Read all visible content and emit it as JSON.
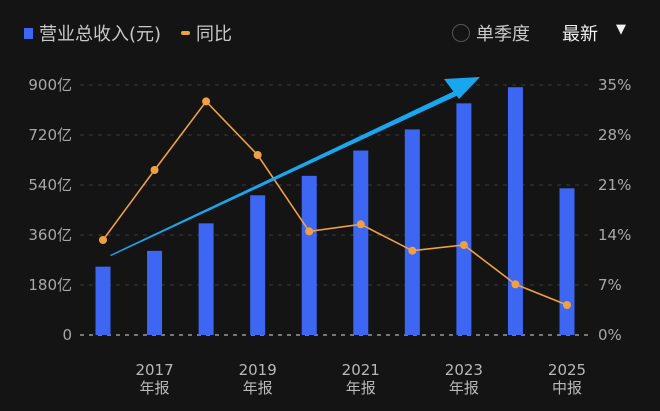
{
  "legend": {
    "revenue_label": "营业总收入(元)",
    "yoy_label": "同比"
  },
  "controls": {
    "quarterly_label": "单季度",
    "latest_label": "最新",
    "quarterly_checked": false
  },
  "colors": {
    "bar": "#3d67f2",
    "line": "#f0a040",
    "arrow": "#18a6ee",
    "background": "#141414"
  },
  "chart_data": {
    "type": "bar+line",
    "categories": [
      "2016年报",
      "2017年报",
      "2018年报",
      "2019年报",
      "2020年报",
      "2021年报",
      "2022年报",
      "2023年报",
      "2024年报",
      "2025中报"
    ],
    "x_tick_labels": [
      {
        "year": "2017",
        "kind": "年报",
        "index": 1
      },
      {
        "year": "2019",
        "kind": "年报",
        "index": 3
      },
      {
        "year": "2021",
        "kind": "年报",
        "index": 5
      },
      {
        "year": "2023",
        "kind": "年报",
        "index": 7
      },
      {
        "year": "2025",
        "kind": "中报",
        "index": 9
      }
    ],
    "series": [
      {
        "name": "营业总收入(元)",
        "type": "bar",
        "axis": "left",
        "unit": "亿",
        "values": [
          246,
          303,
          402,
          503,
          573,
          664,
          740,
          834,
          892,
          528
        ]
      },
      {
        "name": "同比",
        "type": "line",
        "axis": "right",
        "unit": "%",
        "values": [
          13.3,
          23.1,
          32.7,
          25.2,
          14.5,
          15.5,
          11.8,
          12.6,
          7.1,
          4.2
        ]
      }
    ],
    "y_left": {
      "ylim": [
        0,
        900
      ],
      "ticks": [
        "0",
        "180亿",
        "360亿",
        "540亿",
        "720亿",
        "900亿"
      ]
    },
    "y_right": {
      "ylim": [
        0,
        35
      ],
      "ticks": [
        "0%",
        "7%",
        "14%",
        "21%",
        "28%",
        "35%"
      ]
    },
    "grid": true,
    "annotation": "upward trend arrow",
    "legend_position": "top-left"
  }
}
